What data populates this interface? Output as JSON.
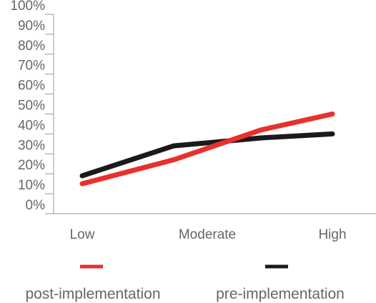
{
  "chart_data": {
    "type": "line",
    "categories": [
      "Low",
      "Moderate",
      "High"
    ],
    "x": [
      0,
      0.73,
      1.43,
      2
    ],
    "series": [
      {
        "name": "post-implementation",
        "color": "#e8302c",
        "values": [
          15,
          27,
          42,
          50
        ]
      },
      {
        "name": "pre-implementation",
        "color": "#1a1a1a",
        "values": [
          19,
          34,
          38,
          40
        ]
      }
    ],
    "y_ticks": [
      "0%",
      "10%",
      "20%",
      "30%",
      "40%",
      "50%",
      "60%",
      "70%",
      "80%",
      "90%",
      "100%"
    ],
    "ylim": [
      0,
      100
    ],
    "grid": false,
    "legend": "bottom"
  }
}
